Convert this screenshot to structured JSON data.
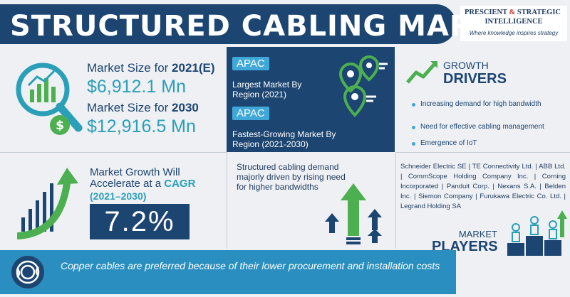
{
  "header": {
    "title": "STRUCTURED CABLING MARKET",
    "logo_line1_a": "PRESCIENT",
    "logo_amp": "&",
    "logo_line1_b": "STRATEGIC",
    "logo_line2": "INTELLIGENCE",
    "logo_tagline": "Where knowledge inspires strategy"
  },
  "market_size": {
    "label_2021_prefix": "Market Size for ",
    "label_2021_year": "2021(E)",
    "value_2021": "$6,912.1 Mn",
    "label_2030_prefix": "Market Size for ",
    "label_2030_year": "2030",
    "value_2030": "$12,916.5 Mn"
  },
  "region": {
    "largest_badge": "APAC",
    "largest_text": "Largest Market By Region (2021)",
    "fastest_badge": "APAC",
    "fastest_text": "Fastest-Growing Market By Region (2021-2030)"
  },
  "drivers": {
    "heading_top": "GROWTH",
    "heading_bottom": "DRIVERS",
    "items": [
      "Increasing demand for high bandwidth",
      "Need for effective cabling management",
      "Emergence of IoT"
    ]
  },
  "cagr": {
    "line1": "Market Growth Will",
    "line2_prefix": "Accelerate at a ",
    "line2_highlight": "CAGR",
    "line3": "(2021–2030)",
    "value": "7.2%"
  },
  "demand": {
    "text": "Structured cabling demand majorly driven by rising need for higher bandwidths"
  },
  "players": {
    "list_text": "Schneider Electric SE | TE Connectivity Ltd. | ABB Ltd. | CommScope Holding Company Inc. | Corning Incorporated | Panduit Corp. | Nexans S.A. | Belden Inc. | Siemon Company | Furukawa Electric Co. Ltd. | Legrand Holding SA",
    "heading_top": "MARKET",
    "heading_bottom": "PLAYERS"
  },
  "footer": {
    "text": "Copper cables are preferred because of their lower procurement and installation costs"
  },
  "colors": {
    "navy": "#1d4571",
    "teal": "#2a9fb8",
    "green": "#4caf50",
    "blue_accent": "#3fa8d8"
  }
}
